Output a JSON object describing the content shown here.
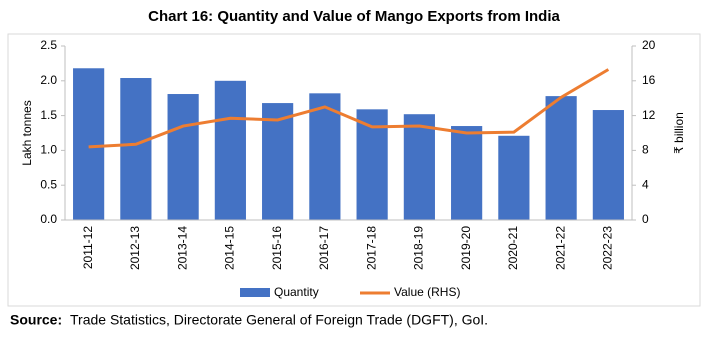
{
  "chart_data": {
    "type": "bar_line",
    "title": "Chart 16: Quantity and Value of Mango Exports from India",
    "y_label": "Lakh tonnes",
    "y2_label": "₹ billion",
    "categories": [
      "2011-12",
      "2012-13",
      "2013-14",
      "2014-15",
      "2015-16",
      "2016-17",
      "2017-18",
      "2018-19",
      "2019-20",
      "2020-21",
      "2021-22",
      "2022-23"
    ],
    "series": [
      {
        "name": "Quantity",
        "type": "bar",
        "color": "#4472c4",
        "values": [
          2.18,
          2.04,
          1.81,
          2.0,
          1.68,
          1.82,
          1.59,
          1.52,
          1.35,
          1.21,
          1.78,
          1.58
        ]
      },
      {
        "name": "Value (RHS)",
        "type": "line",
        "axis": "y2",
        "color": "#ed7d31",
        "values": [
          8.4,
          8.7,
          10.8,
          11.7,
          11.5,
          13.0,
          10.7,
          10.8,
          10.0,
          10.1,
          14.1,
          17.3
        ]
      }
    ],
    "ylim": [
      0,
      2.5
    ],
    "yticks": [
      {
        "value": 0,
        "label": "0.0"
      },
      0.5,
      {
        "value": 1,
        "label": "1.0"
      },
      1.5,
      {
        "value": 2,
        "label": "2.0"
      },
      2.5
    ],
    "y2lim": [
      0,
      20
    ],
    "y2ticks": [
      0,
      4,
      8,
      12,
      16,
      20
    ],
    "legend": "bottom",
    "source_label": "Source:",
    "source_text": "Trade Statistics, Directorate General of Foreign Trade (DGFT), GoI."
  }
}
